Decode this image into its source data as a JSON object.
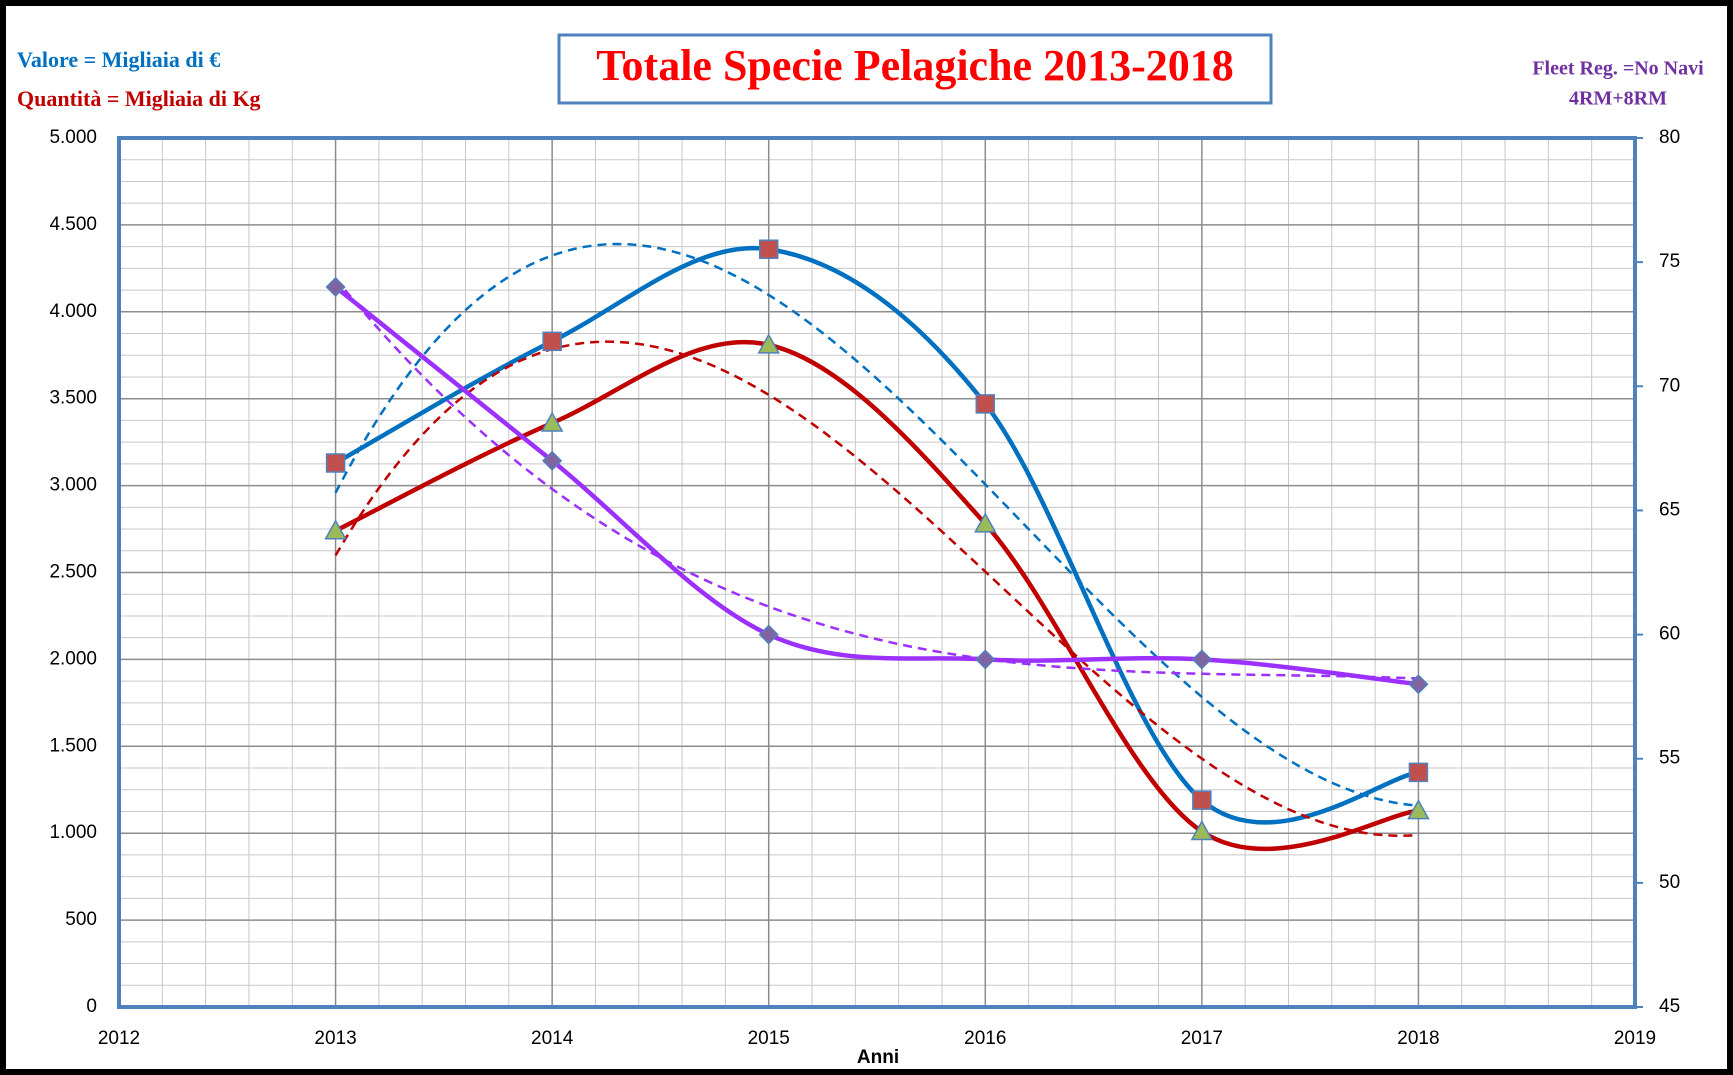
{
  "chart_data": {
    "type": "line",
    "title": "Totale Specie Pelagiche 2013-2018",
    "annotations": [
      "Valore = Migliaia di €",
      "Quantità = Migliaia di Kg",
      "Fleet Reg. =No Navi",
      "4RM+8RM"
    ],
    "x_label": "Anni",
    "x": [
      2013,
      2014,
      2015,
      2016,
      2017,
      2018
    ],
    "series": [
      {
        "color": "#0070c0",
        "marker": "square",
        "marker_color": "#c0504d",
        "values": [
          3130,
          3830,
          4360,
          3470,
          1190,
          1350
        ]
      },
      {
        "color": "#c00000",
        "marker": "triangle",
        "marker_color": "#9bbb59",
        "values": [
          2740,
          3360,
          3810,
          2780,
          1010,
          1130
        ]
      },
      {
        "color": "#9b30ff",
        "marker": "diamond",
        "marker_color": "#8064a2",
        "axis": "y2",
        "values": [
          74,
          67,
          60,
          59,
          59,
          58
        ]
      }
    ],
    "smooth": true,
    "trendline": "polynomial",
    "trendline_order": 3,
    "xlim": [
      2012,
      2019
    ],
    "xticks": [
      2012,
      2013,
      2014,
      2015,
      2016,
      2017,
      2018,
      2019
    ],
    "ylim": [
      0,
      5000
    ],
    "yticks": [
      0,
      {
        "value": 500,
        "label": "500"
      },
      {
        "value": 1000,
        "label": "1.000"
      },
      {
        "value": 1500,
        "label": "1.500"
      },
      {
        "value": 2000,
        "label": "2.000"
      },
      {
        "value": 2500,
        "label": "2.500"
      },
      {
        "value": 3000,
        "label": "3.000"
      },
      {
        "value": 3500,
        "label": "3.500"
      },
      {
        "value": 4000,
        "label": "4.000"
      },
      {
        "value": 4500,
        "label": "4.500"
      },
      {
        "value": 5000,
        "label": "5.000"
      }
    ],
    "y2lim": [
      45,
      80
    ],
    "y2ticks": [
      45,
      50,
      55,
      60,
      65,
      70,
      75,
      80
    ],
    "grid": true
  }
}
